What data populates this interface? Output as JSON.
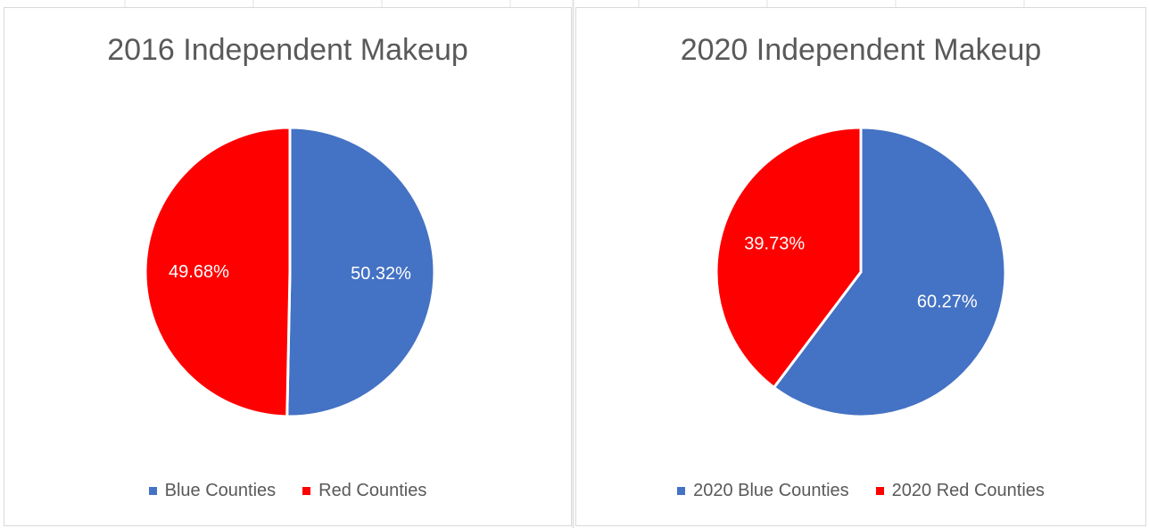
{
  "chart_data": [
    {
      "type": "pie",
      "title": "2016 Independent Makeup",
      "slices": [
        {
          "label": "Blue Counties",
          "value": 50.32,
          "value_label": "50.32%",
          "color": "#4472C4"
        },
        {
          "label": "Red Counties",
          "value": 49.68,
          "value_label": "49.68%",
          "color": "#FF0000"
        }
      ],
      "legend_position": "bottom"
    },
    {
      "type": "pie",
      "title": "2020 Independent Makeup",
      "slices": [
        {
          "label": "2020 Blue Counties",
          "value": 60.27,
          "value_label": "60.27%",
          "color": "#4472C4"
        },
        {
          "label": "2020 Red Counties",
          "value": 39.73,
          "value_label": "39.73%",
          "color": "#FF0000"
        }
      ],
      "legend_position": "bottom"
    }
  ]
}
